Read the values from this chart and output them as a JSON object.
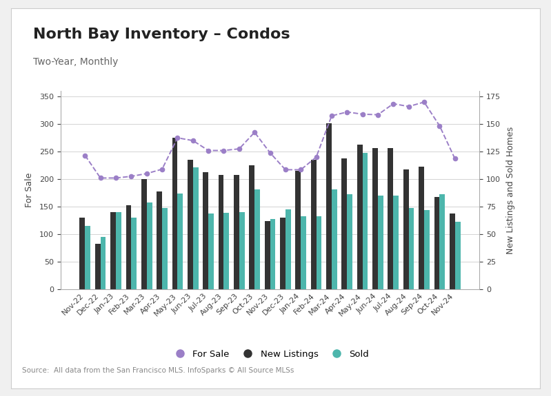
{
  "title": "North Bay Inventory – Condos",
  "subtitle": "Two-Year, Monthly",
  "source": "Source:  All data from the San Francisco MLS. InfoSparks © All Source MLSs",
  "categories": [
    "Nov-22",
    "Dec-22",
    "Jan-23",
    "Feb-23",
    "Mar-23",
    "Apr-23",
    "May-23",
    "Jun-23",
    "Jul-23",
    "Aug-23",
    "Sep-23",
    "Oct-23",
    "Nov-23",
    "Dec-23",
    "Jan-24",
    "Feb-24",
    "Mar-24",
    "Apr-24",
    "May-24",
    "Jun-24",
    "Jul-24",
    "Aug-24",
    "Sep-24",
    "Oct-24",
    "Nov-24"
  ],
  "for_sale": [
    243,
    202,
    202,
    205,
    210,
    218,
    275,
    270,
    252,
    252,
    255,
    285,
    248,
    217,
    217,
    240,
    315,
    322,
    318,
    317,
    337,
    332,
    340,
    297,
    237
  ],
  "new_listings": [
    130,
    82,
    140,
    152,
    200,
    178,
    275,
    235,
    212,
    207,
    207,
    225,
    124,
    130,
    215,
    235,
    302,
    237,
    263,
    257,
    256,
    218,
    222,
    168,
    137
  ],
  "sold": [
    115,
    95,
    140,
    130,
    158,
    148,
    174,
    221,
    138,
    139,
    140,
    181,
    127,
    145,
    133,
    133,
    181,
    173,
    247,
    170,
    170,
    148,
    144,
    172,
    123
  ],
  "for_sale_color": "#9b7fc7",
  "new_listings_color": "#333333",
  "sold_color": "#4db6ac",
  "background_color": "#ffffff",
  "outer_background": "#f0f0f0",
  "left_ylim": [
    0,
    360
  ],
  "right_ylim": [
    0,
    180
  ],
  "left_yticks": [
    0,
    50,
    100,
    150,
    200,
    250,
    300,
    350
  ],
  "right_yticks": [
    0,
    25,
    50,
    75,
    100,
    125,
    150,
    175
  ],
  "ylabel_left": "For Sale",
  "ylabel_right": "New Listings and Sold Homes",
  "title_fontsize": 16,
  "subtitle_fontsize": 10,
  "axis_fontsize": 9,
  "tick_fontsize": 8,
  "source_fontsize": 7.5,
  "bar_width": 0.35
}
